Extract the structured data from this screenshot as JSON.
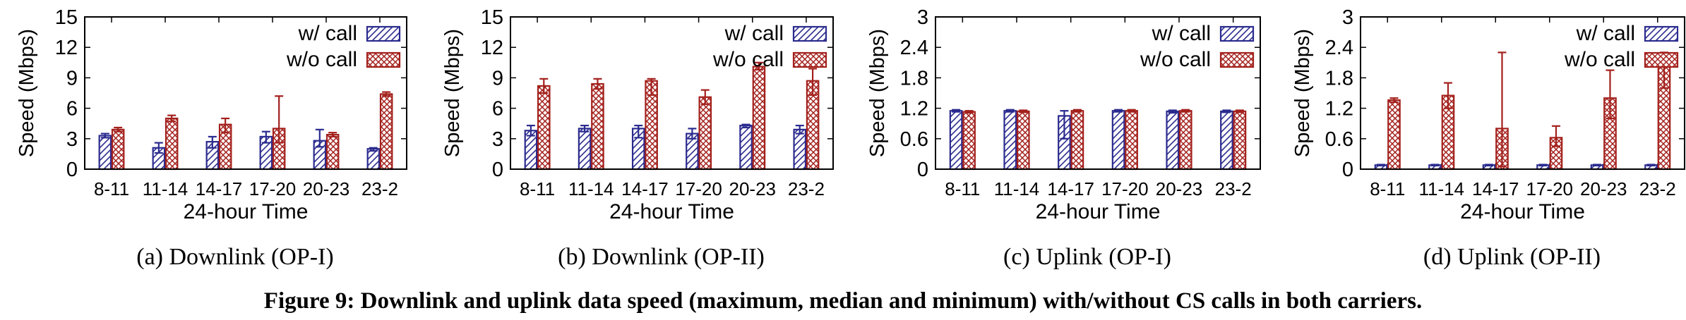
{
  "figure": {
    "caption": "Figure 9: Downlink and uplink data speed (maximum, median and minimum) with/without CS calls in both carriers."
  },
  "colors": {
    "with_call": "#2b2b8f",
    "without_call": "#a3201c"
  },
  "chart_data": [
    {
      "type": "bar",
      "subcaption": "(a) Downlink (OP-I)",
      "xlabel": "24-hour Time",
      "ylabel": "Speed (Mbps)",
      "ylim": [
        0,
        15
      ],
      "yticks": [
        "0",
        "3",
        "6",
        "9",
        "12",
        "15"
      ],
      "categories": [
        "8-11",
        "11-14",
        "14-17",
        "17-20",
        "20-23",
        "23-2"
      ],
      "legend_position": "top-right",
      "series": [
        {
          "name": "w/ call",
          "pattern": "hatch",
          "values": [
            3.3,
            2.1,
            2.7,
            3.2,
            2.8,
            2.0
          ],
          "min": [
            3.1,
            1.6,
            2.1,
            2.6,
            2.2,
            1.8
          ],
          "max": [
            3.5,
            2.6,
            3.2,
            3.7,
            3.9,
            2.1
          ]
        },
        {
          "name": "w/o call",
          "pattern": "crosshatch",
          "values": [
            3.9,
            5.0,
            4.4,
            4.0,
            3.4,
            7.4
          ],
          "min": [
            3.7,
            4.7,
            3.6,
            2.6,
            3.2,
            7.2
          ],
          "max": [
            4.1,
            5.3,
            5.0,
            7.2,
            3.6,
            7.6
          ]
        }
      ]
    },
    {
      "type": "bar",
      "subcaption": "(b) Downlink (OP-II)",
      "xlabel": "24-hour Time",
      "ylabel": "Speed (Mbps)",
      "ylim": [
        0,
        15
      ],
      "yticks": [
        "0",
        "3",
        "6",
        "9",
        "12",
        "15"
      ],
      "categories": [
        "8-11",
        "11-14",
        "14-17",
        "17-20",
        "20-23",
        "23-2"
      ],
      "legend_position": "top-right",
      "series": [
        {
          "name": "w/ call",
          "pattern": "hatch",
          "values": [
            3.8,
            4.0,
            4.0,
            3.5,
            4.3,
            3.9
          ],
          "min": [
            3.3,
            3.7,
            3.1,
            3.0,
            4.1,
            3.5
          ],
          "max": [
            4.3,
            4.3,
            4.3,
            4.0,
            4.4,
            4.3
          ]
        },
        {
          "name": "w/o call",
          "pattern": "crosshatch",
          "values": [
            8.2,
            8.4,
            8.7,
            7.1,
            10.1,
            8.7
          ],
          "min": [
            7.5,
            7.9,
            7.3,
            6.4,
            9.8,
            7.3
          ],
          "max": [
            8.9,
            8.9,
            8.9,
            7.8,
            10.5,
            9.9
          ]
        }
      ]
    },
    {
      "type": "bar",
      "subcaption": "(c) Uplink (OP-I)",
      "xlabel": "24-hour Time",
      "ylabel": "Speed (Mbps)",
      "ylim": [
        0,
        3
      ],
      "yticks": [
        "0",
        "0.6",
        "1.2",
        "1.8",
        "2.4",
        "3"
      ],
      "categories": [
        "8-11",
        "11-14",
        "14-17",
        "17-20",
        "20-23",
        "23-2"
      ],
      "legend_position": "top-right",
      "series": [
        {
          "name": "w/ call",
          "pattern": "hatch",
          "values": [
            1.15,
            1.15,
            1.05,
            1.15,
            1.14,
            1.14
          ],
          "min": [
            1.13,
            1.13,
            0.6,
            1.13,
            1.11,
            1.12
          ],
          "max": [
            1.17,
            1.17,
            1.15,
            1.17,
            1.16,
            1.16
          ]
        },
        {
          "name": "w/o call",
          "pattern": "crosshatch",
          "values": [
            1.13,
            1.14,
            1.15,
            1.15,
            1.15,
            1.14
          ],
          "min": [
            1.11,
            1.12,
            1.13,
            1.13,
            1.13,
            1.12
          ],
          "max": [
            1.15,
            1.16,
            1.17,
            1.17,
            1.17,
            1.16
          ]
        }
      ]
    },
    {
      "type": "bar",
      "subcaption": "(d) Uplink (OP-II)",
      "xlabel": "24-hour Time",
      "ylabel": "Speed (Mbps)",
      "ylim": [
        0,
        3
      ],
      "yticks": [
        "0",
        "0.6",
        "1.2",
        "1.8",
        "2.4",
        "3"
      ],
      "categories": [
        "8-11",
        "11-14",
        "14-17",
        "17-20",
        "20-23",
        "23-2"
      ],
      "legend_position": "top-right",
      "series": [
        {
          "name": "w/ call",
          "pattern": "hatch",
          "values": [
            0.08,
            0.08,
            0.08,
            0.08,
            0.08,
            0.08
          ],
          "min": [
            0.07,
            0.07,
            0.07,
            0.07,
            0.07,
            0.07
          ],
          "max": [
            0.09,
            0.09,
            0.09,
            0.09,
            0.09,
            0.09
          ]
        },
        {
          "name": "w/o call",
          "pattern": "crosshatch",
          "values": [
            1.36,
            1.45,
            0.8,
            0.62,
            1.4,
            2.1
          ],
          "min": [
            1.32,
            1.2,
            0.05,
            0.45,
            1.0,
            1.6
          ],
          "max": [
            1.4,
            1.7,
            2.3,
            0.85,
            1.95,
            2.3
          ]
        }
      ]
    }
  ]
}
